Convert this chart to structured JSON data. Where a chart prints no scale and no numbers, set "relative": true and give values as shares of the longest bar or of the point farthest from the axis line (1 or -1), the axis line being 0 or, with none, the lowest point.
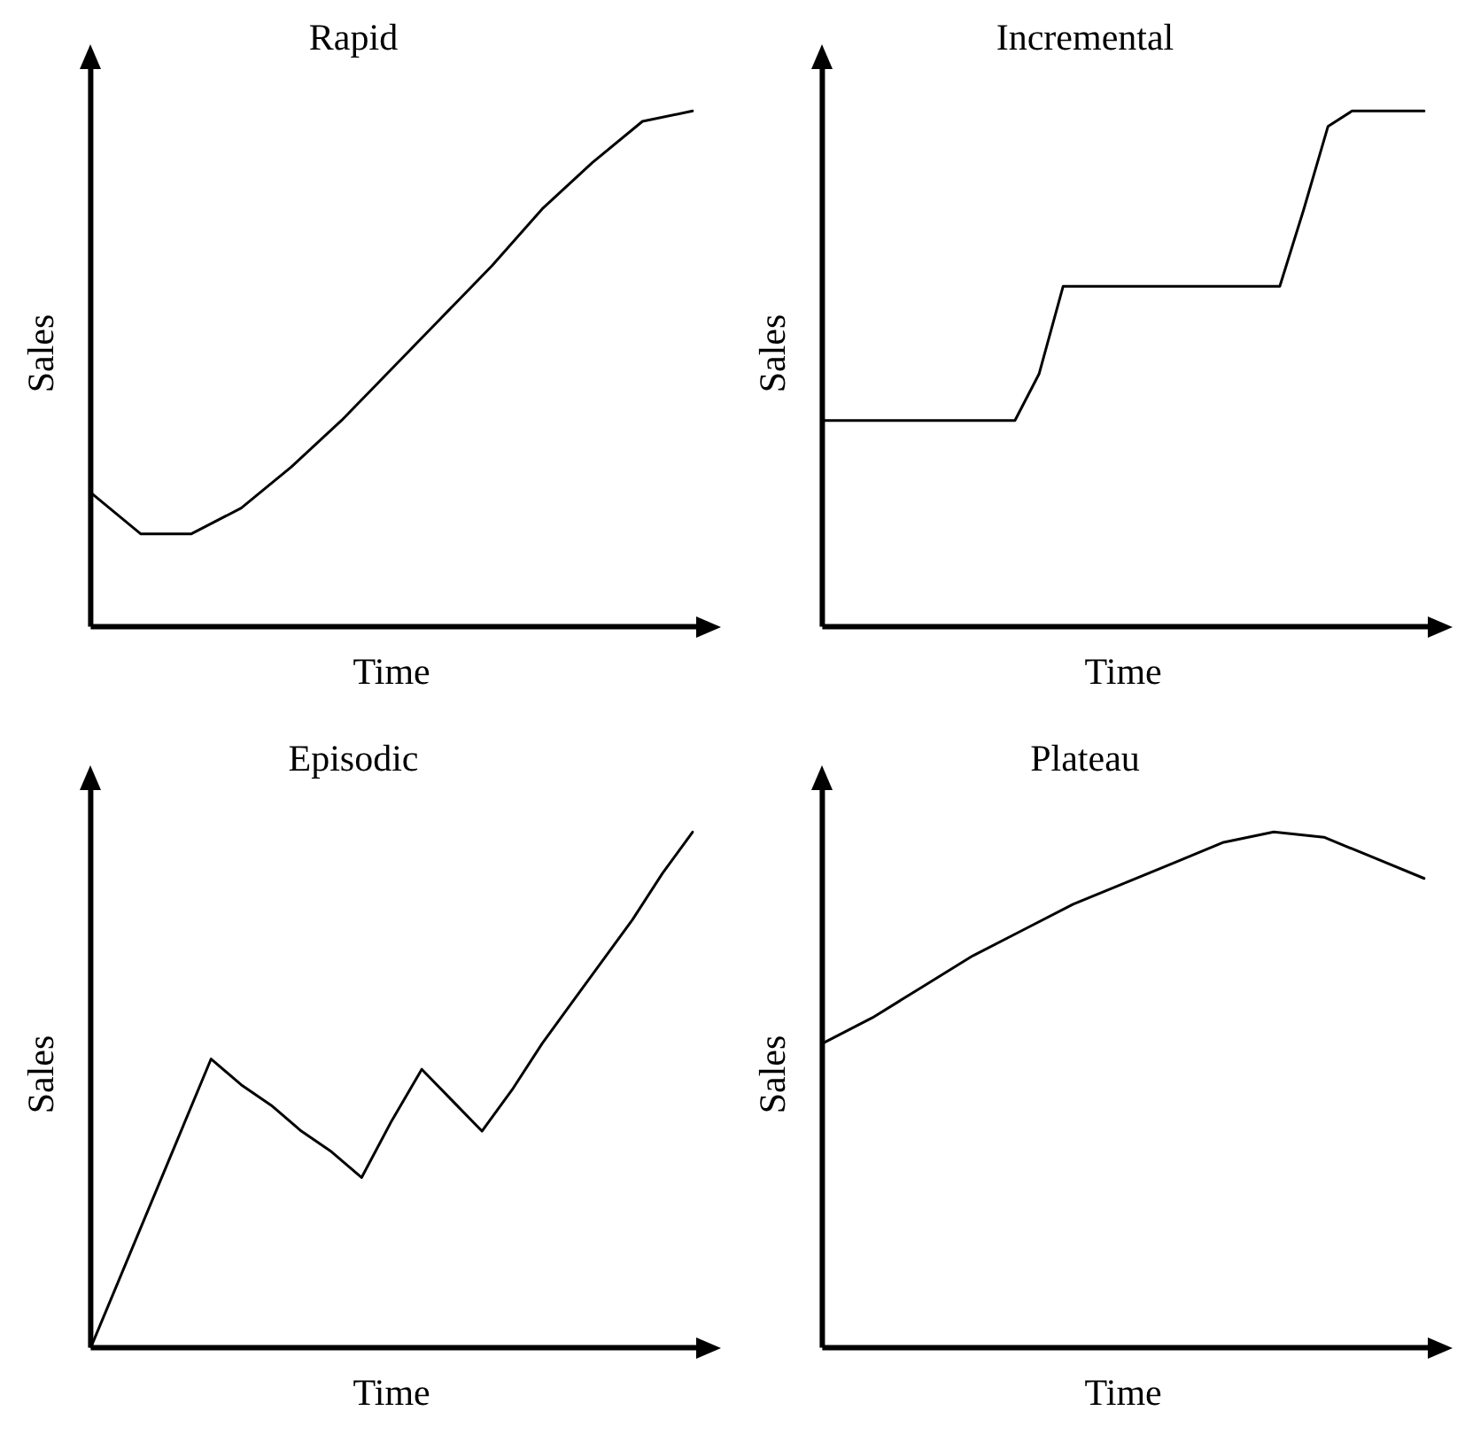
{
  "chart_data": [
    {
      "type": "line",
      "title": "Rapid",
      "xlabel": "Time",
      "ylabel": "Sales",
      "relative": true,
      "tick_labels": false,
      "grid": false,
      "marker": "none",
      "line_style": "solid",
      "color": "#000000",
      "categories": [
        null,
        null,
        null,
        null,
        null,
        null,
        null,
        null,
        null,
        null,
        null,
        null,
        null
      ],
      "values": [
        0.26,
        0.18,
        0.18,
        0.23,
        0.31,
        0.4,
        0.5,
        0.6,
        0.7,
        0.81,
        0.9,
        0.98,
        1.0
      ]
    },
    {
      "type": "line",
      "title": "Incremental",
      "xlabel": "Time",
      "ylabel": "Sales",
      "relative": true,
      "tick_labels": false,
      "grid": false,
      "marker": "none",
      "line_style": "solid",
      "color": "#000000",
      "categories": [
        null,
        null,
        null,
        null,
        null,
        null,
        null,
        null,
        null,
        null,
        null,
        null,
        null,
        null,
        null,
        null,
        null,
        null,
        null,
        null,
        null,
        null,
        null,
        null,
        null,
        null
      ],
      "values": [
        0.4,
        0.4,
        0.4,
        0.4,
        0.4,
        0.4,
        0.4,
        0.4,
        0.4,
        0.49,
        0.66,
        0.66,
        0.66,
        0.66,
        0.66,
        0.66,
        0.66,
        0.66,
        0.66,
        0.66,
        0.81,
        0.97,
        1.0,
        1.0,
        1.0,
        1.0
      ]
    },
    {
      "type": "line",
      "title": "Episodic",
      "xlabel": "Time",
      "ylabel": "Sales",
      "relative": true,
      "tick_labels": false,
      "grid": false,
      "marker": "none",
      "line_style": "solid",
      "color": "#000000",
      "categories": [
        null,
        null,
        null,
        null,
        null,
        null,
        null,
        null,
        null,
        null,
        null,
        null,
        null,
        null,
        null,
        null,
        null,
        null,
        null,
        null,
        null
      ],
      "values": [
        0,
        0.14,
        0.28,
        0.42,
        0.56,
        0.51,
        0.47,
        0.42,
        0.38,
        0.33,
        0.44,
        0.54,
        0.48,
        0.42,
        0.5,
        0.59,
        0.67,
        0.75,
        0.83,
        0.92,
        1.0
      ]
    },
    {
      "type": "line",
      "title": "Plateau",
      "xlabel": "Time",
      "ylabel": "Sales",
      "relative": true,
      "tick_labels": false,
      "grid": false,
      "marker": "none",
      "line_style": "solid",
      "color": "#000000",
      "categories": [
        null,
        null,
        null,
        null,
        null,
        null,
        null,
        null,
        null,
        null,
        null,
        null,
        null
      ],
      "values": [
        0.59,
        0.64,
        0.7,
        0.76,
        0.81,
        0.86,
        0.9,
        0.94,
        0.98,
        1.0,
        0.99,
        0.95,
        0.91
      ]
    }
  ]
}
